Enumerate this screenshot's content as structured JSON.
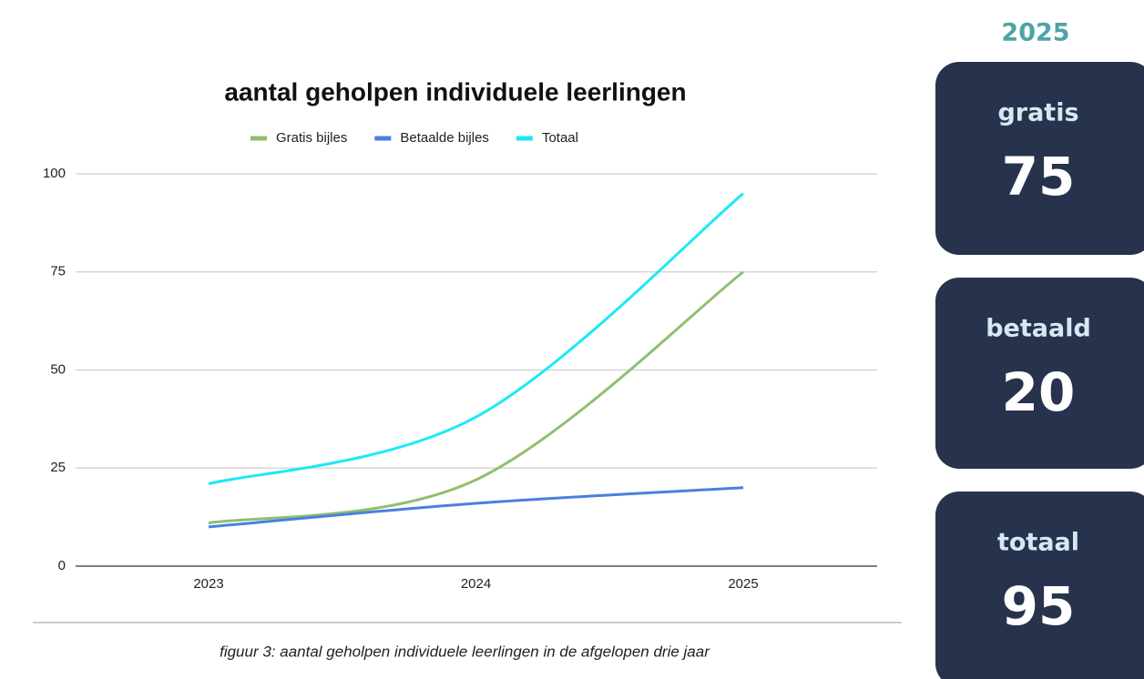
{
  "chart_data": {
    "type": "line",
    "title": "aantal geholpen individuele leerlingen",
    "categories": [
      "2023",
      "2024",
      "2025"
    ],
    "series": [
      {
        "name": "Gratis bijles",
        "color": "#8fbf6e",
        "values": [
          11,
          22,
          75
        ]
      },
      {
        "name": "Betaalde bijles",
        "color": "#4a7fe0",
        "values": [
          10,
          16,
          20
        ]
      },
      {
        "name": "Totaal",
        "color": "#1ee8f5",
        "values": [
          21,
          38,
          95
        ]
      }
    ],
    "ylim": [
      0,
      100
    ],
    "yticks": [
      0,
      25,
      50,
      75,
      100
    ],
    "grid": true,
    "legend": "top"
  },
  "caption": "figuur 3: aantal geholpen individuele leerlingen in de afgelopen drie jaar",
  "side_panel": {
    "title": "2025",
    "cards": [
      {
        "label": "gratis",
        "value": 75
      },
      {
        "label": "betaald",
        "value": 20
      },
      {
        "label": "totaal",
        "value": 95
      }
    ]
  }
}
